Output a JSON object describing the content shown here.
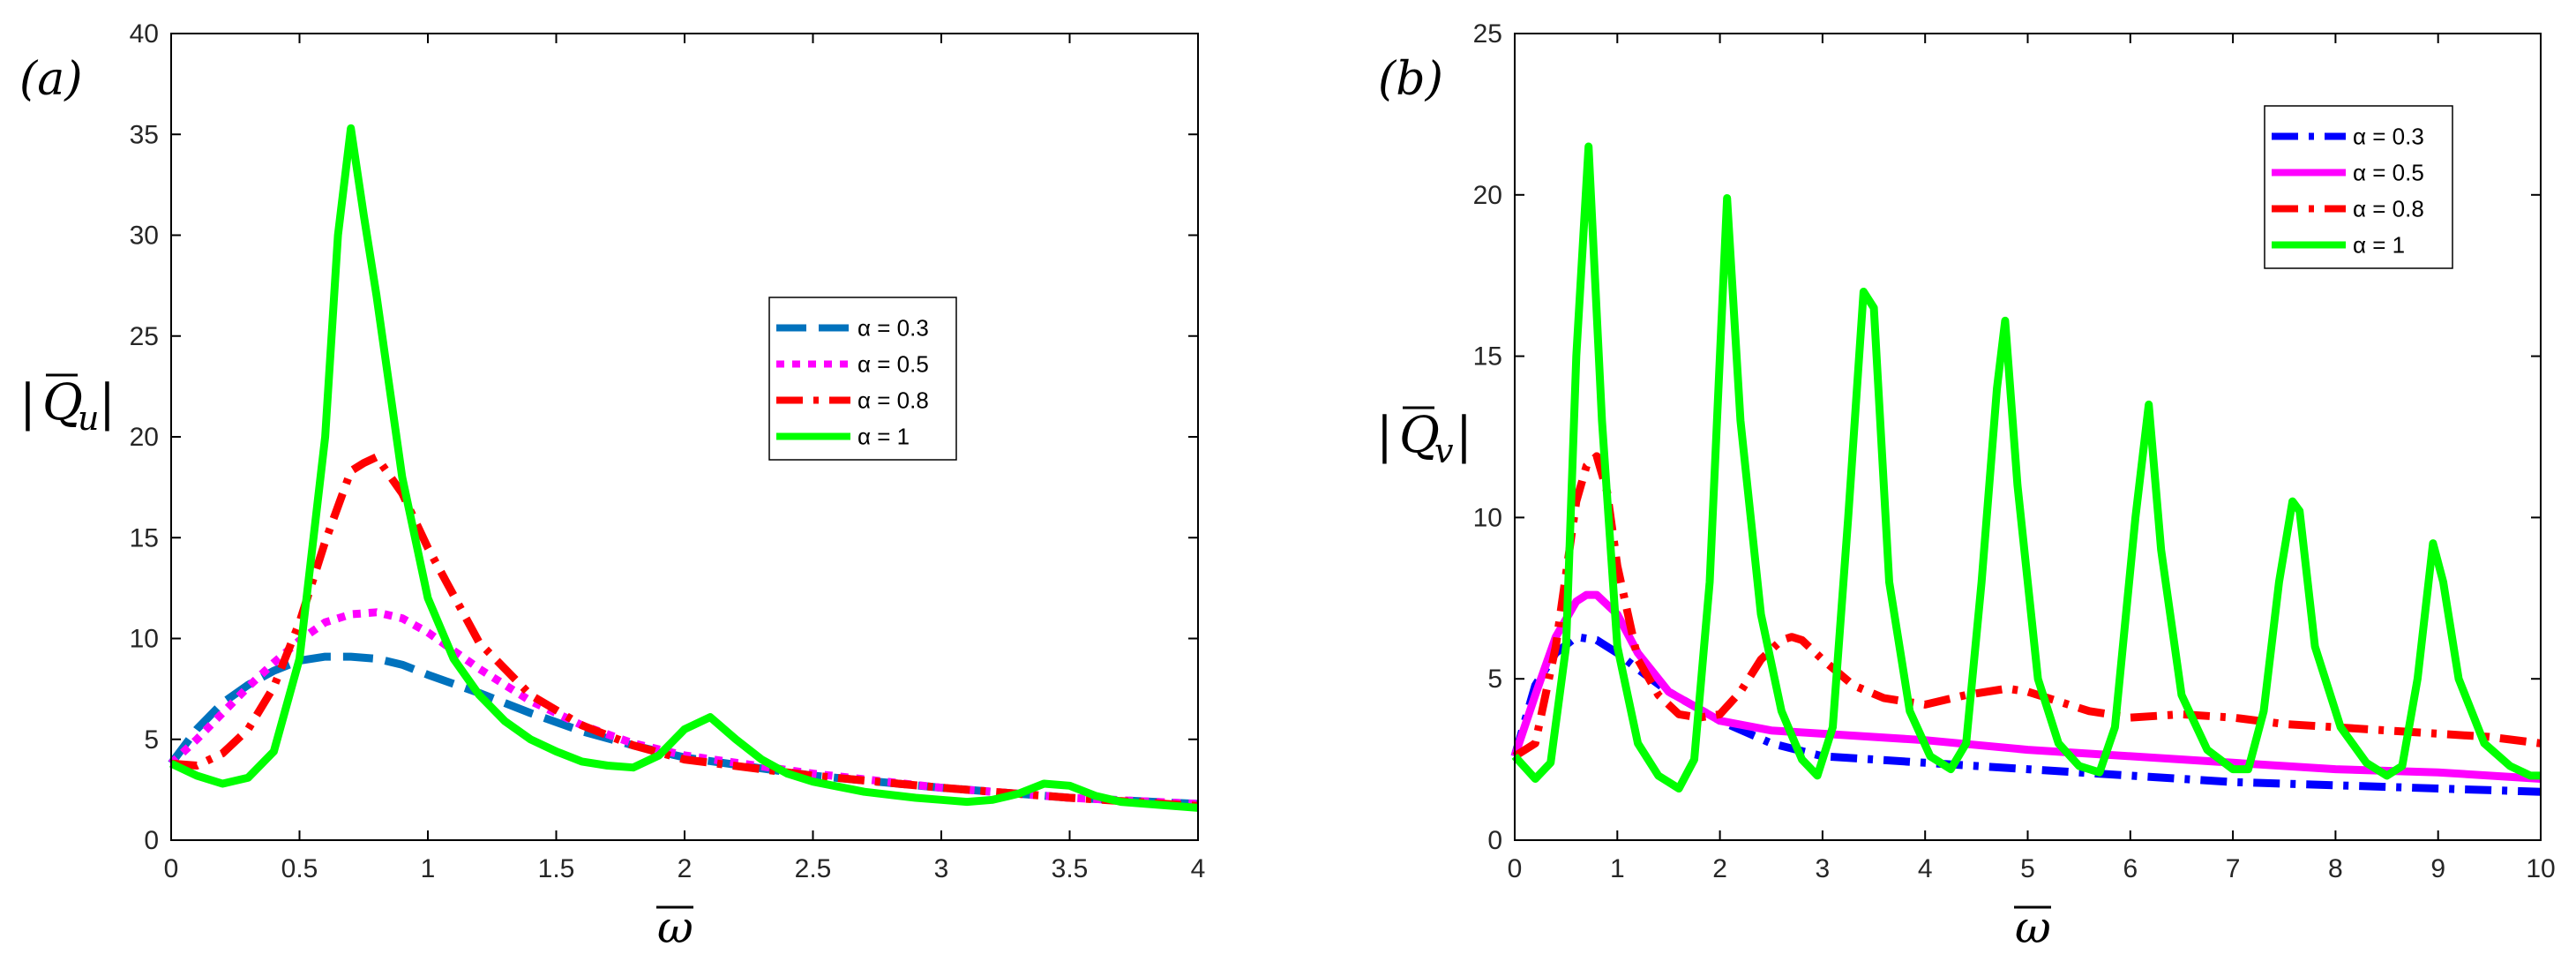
{
  "chart_data": [
    {
      "type": "line",
      "panel_label": "(a)",
      "ylabel_symbol": "Q",
      "ylabel_sub": "u",
      "xlabel": "ω",
      "xlim": [
        0,
        4
      ],
      "ylim": [
        0,
        40
      ],
      "xticks": [
        "0",
        "0.5",
        "1",
        "1.5",
        "2",
        "2.5",
        "3",
        "3.5",
        "4"
      ],
      "xtick_values": [
        0,
        0.5,
        1,
        1.5,
        2,
        2.5,
        3,
        3.5,
        4
      ],
      "yticks": [
        "0",
        "5",
        "10",
        "15",
        "20",
        "25",
        "30",
        "35",
        "40"
      ],
      "ytick_values": [
        0,
        5,
        10,
        15,
        20,
        25,
        30,
        35,
        40
      ],
      "legend_position": "center-right",
      "series": [
        {
          "name": "α = 0.3",
          "color": "#0072bd",
          "dash": "dashed",
          "x": [
            0,
            0.1,
            0.2,
            0.3,
            0.4,
            0.5,
            0.6,
            0.7,
            0.8,
            0.9,
            1.0,
            1.2,
            1.4,
            1.6,
            1.8,
            2.0,
            2.5,
            3.0,
            3.5,
            4.0
          ],
          "y": [
            3.8,
            5.5,
            6.8,
            7.7,
            8.4,
            8.9,
            9.1,
            9.1,
            9.0,
            8.7,
            8.2,
            7.3,
            6.3,
            5.4,
            4.7,
            4.1,
            3.2,
            2.6,
            2.1,
            1.8
          ]
        },
        {
          "name": "α = 0.5",
          "color": "#ff00ff",
          "dash": "dotted",
          "x": [
            0,
            0.1,
            0.2,
            0.3,
            0.4,
            0.5,
            0.6,
            0.7,
            0.8,
            0.9,
            1.0,
            1.2,
            1.4,
            1.6,
            1.8,
            2.0,
            2.5,
            3.0,
            3.5,
            4.0
          ],
          "y": [
            3.8,
            5.0,
            6.3,
            7.6,
            8.8,
            9.9,
            10.8,
            11.2,
            11.3,
            11.0,
            10.3,
            8.5,
            6.9,
            5.7,
            4.8,
            4.2,
            3.3,
            2.6,
            2.1,
            1.8
          ]
        },
        {
          "name": "α = 0.8",
          "color": "#ff0000",
          "dash": "dashdot",
          "x": [
            0,
            0.1,
            0.2,
            0.3,
            0.4,
            0.5,
            0.6,
            0.7,
            0.75,
            0.8,
            0.9,
            1.0,
            1.2,
            1.4,
            1.6,
            1.8,
            2.0,
            2.5,
            3.0,
            3.5,
            4.0
          ],
          "y": [
            3.8,
            3.7,
            4.3,
            5.5,
            7.6,
            10.8,
            14.8,
            18.3,
            18.7,
            19.0,
            17.2,
            14.5,
            9.8,
            7.2,
            5.7,
            4.7,
            4.0,
            3.2,
            2.6,
            2.1,
            1.7
          ]
        },
        {
          "name": "α = 1",
          "color": "#00ff00",
          "dash": "solid",
          "x": [
            0,
            0.1,
            0.2,
            0.3,
            0.4,
            0.5,
            0.6,
            0.65,
            0.7,
            0.75,
            0.8,
            0.9,
            1.0,
            1.1,
            1.2,
            1.3,
            1.4,
            1.5,
            1.6,
            1.7,
            1.8,
            1.9,
            2.0,
            2.1,
            2.2,
            2.3,
            2.4,
            2.5,
            2.7,
            2.9,
            3.0,
            3.1,
            3.2,
            3.3,
            3.4,
            3.5,
            3.6,
            3.7,
            3.8,
            4.0
          ],
          "y": [
            3.8,
            3.2,
            2.8,
            3.1,
            4.4,
            9.0,
            20.0,
            30.0,
            35.3,
            31.0,
            27.0,
            18.0,
            12.0,
            9.0,
            7.2,
            5.9,
            5.0,
            4.4,
            3.9,
            3.7,
            3.6,
            4.2,
            5.5,
            6.1,
            5.0,
            4.0,
            3.3,
            2.9,
            2.4,
            2.1,
            2.0,
            1.9,
            2.0,
            2.3,
            2.8,
            2.7,
            2.2,
            1.9,
            1.8,
            1.6
          ]
        }
      ]
    },
    {
      "type": "line",
      "panel_label": "(b)",
      "ylabel_symbol": "Q",
      "ylabel_sub": "v",
      "xlabel": "ω",
      "xlim": [
        0,
        10
      ],
      "ylim": [
        0,
        25
      ],
      "xticks": [
        "0",
        "1",
        "2",
        "3",
        "4",
        "5",
        "6",
        "7",
        "8",
        "9",
        "10"
      ],
      "xtick_values": [
        0,
        1,
        2,
        3,
        4,
        5,
        6,
        7,
        8,
        9,
        10
      ],
      "yticks": [
        "0",
        "5",
        "10",
        "15",
        "20",
        "25"
      ],
      "ytick_values": [
        0,
        5,
        10,
        15,
        20,
        25
      ],
      "legend_position": "top-right",
      "series": [
        {
          "name": "α = 0.3",
          "color": "#0000ff",
          "dash": "dashdot",
          "x": [
            0,
            0.2,
            0.4,
            0.6,
            0.8,
            1.0,
            1.2,
            1.5,
            2.0,
            2.5,
            3.0,
            4.0,
            5.0,
            6.0,
            7.0,
            8.0,
            9.0,
            10.0
          ],
          "y": [
            2.6,
            4.8,
            5.8,
            6.3,
            6.2,
            5.8,
            5.3,
            4.6,
            3.7,
            3.0,
            2.6,
            2.4,
            2.2,
            2.0,
            1.8,
            1.7,
            1.6,
            1.5
          ]
        },
        {
          "name": "α = 0.5",
          "color": "#ff00ff",
          "dash": "solid",
          "x": [
            0,
            0.2,
            0.4,
            0.6,
            0.7,
            0.8,
            1.0,
            1.2,
            1.5,
            2.0,
            2.5,
            3.0,
            4.0,
            5.0,
            6.0,
            7.0,
            8.0,
            9.0,
            10.0
          ],
          "y": [
            2.6,
            4.5,
            6.3,
            7.4,
            7.6,
            7.6,
            7.0,
            5.8,
            4.6,
            3.7,
            3.4,
            3.3,
            3.1,
            2.8,
            2.6,
            2.4,
            2.2,
            2.1,
            1.9
          ]
        },
        {
          "name": "α = 0.8",
          "color": "#ff0000",
          "dash": "dashdot",
          "x": [
            0,
            0.2,
            0.4,
            0.6,
            0.7,
            0.8,
            0.9,
            1.0,
            1.2,
            1.4,
            1.6,
            1.8,
            2.0,
            2.2,
            2.4,
            2.6,
            2.7,
            2.8,
            3.0,
            3.3,
            3.6,
            4.0,
            4.4,
            4.8,
            5.0,
            5.3,
            5.6,
            6.0,
            6.5,
            7.0,
            7.5,
            8.0,
            8.5,
            9.0,
            9.5,
            10.0
          ],
          "y": [
            2.6,
            3.0,
            6.0,
            10.5,
            11.6,
            11.9,
            10.8,
            8.5,
            5.6,
            4.5,
            3.9,
            3.8,
            3.9,
            4.6,
            5.6,
            6.2,
            6.3,
            6.2,
            5.6,
            4.8,
            4.4,
            4.2,
            4.5,
            4.7,
            4.6,
            4.3,
            4.0,
            3.8,
            3.9,
            3.8,
            3.6,
            3.5,
            3.4,
            3.3,
            3.2,
            3.0
          ]
        },
        {
          "name": "α = 1",
          "color": "#00ff00",
          "dash": "solid",
          "x": [
            0,
            0.2,
            0.35,
            0.5,
            0.6,
            0.72,
            0.85,
            1.0,
            1.2,
            1.4,
            1.6,
            1.75,
            1.9,
            2.07,
            2.2,
            2.4,
            2.6,
            2.8,
            2.95,
            3.1,
            3.25,
            3.4,
            3.5,
            3.65,
            3.85,
            4.05,
            4.25,
            4.4,
            4.55,
            4.7,
            4.78,
            4.9,
            5.1,
            5.3,
            5.5,
            5.7,
            5.85,
            6.05,
            6.18,
            6.3,
            6.5,
            6.75,
            7.0,
            7.15,
            7.3,
            7.45,
            7.58,
            7.65,
            7.8,
            8.05,
            8.3,
            8.5,
            8.65,
            8.8,
            8.95,
            9.05,
            9.2,
            9.45,
            9.7,
            9.9,
            10.0
          ],
          "y": [
            2.6,
            1.9,
            2.4,
            6.0,
            15.0,
            21.5,
            13.0,
            6.0,
            3.0,
            2.0,
            1.6,
            2.5,
            8.0,
            19.9,
            13.0,
            7.0,
            4.0,
            2.5,
            2.0,
            3.5,
            10.0,
            17.0,
            16.5,
            8.0,
            4.0,
            2.6,
            2.2,
            3.0,
            8.0,
            14.0,
            16.1,
            11.0,
            5.0,
            3.0,
            2.3,
            2.1,
            3.5,
            10.0,
            13.5,
            9.0,
            4.5,
            2.8,
            2.2,
            2.2,
            4.0,
            8.0,
            10.5,
            10.2,
            6.0,
            3.5,
            2.4,
            2.0,
            2.3,
            5.0,
            9.2,
            8.0,
            5.0,
            3.0,
            2.3,
            2.0,
            2.0
          ]
        }
      ]
    }
  ]
}
